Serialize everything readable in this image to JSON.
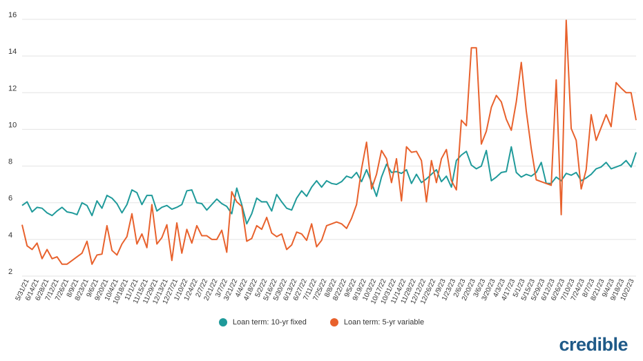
{
  "chart_data": {
    "type": "line",
    "ylim": [
      2,
      16
    ],
    "yticks": [
      2,
      4,
      6,
      8,
      10,
      12,
      14,
      16
    ],
    "grid": true,
    "legend_position": "bottom",
    "x_tick_labels": [
      "5/31/21",
      "6/14/21",
      "6/28/21",
      "7/12/21",
      "7/26/21",
      "8/9/21",
      "8/23/21",
      "9/6/21",
      "9/20/21",
      "10/4/21",
      "10/18/21",
      "11/1/21",
      "11/15/21",
      "11/29/21",
      "12/13/21",
      "12/27/21",
      "1/10/22",
      "1/24/22",
      "2/7/22",
      "2/21/22",
      "3/7/22",
      "3/21/22",
      "4/4/22",
      "4/18/22",
      "5/2/22",
      "5/16/22",
      "5/30/22",
      "6/13/22",
      "6/27/22",
      "7/11/22",
      "7/25/22",
      "8/8/22",
      "8/22/22",
      "9/5/22",
      "9/19/22",
      "10/3/22",
      "10/17/22",
      "10/31/22",
      "11/14/22",
      "11/28/22",
      "12/12/22",
      "12/26/22",
      "1/9/23",
      "1/23/23",
      "2/6/23",
      "2/20/23",
      "3/6/23",
      "3/20/23",
      "4/3/23",
      "4/17/23",
      "5/1/23",
      "5/15/23",
      "5/29/23",
      "6/12/23",
      "6/26/23",
      "7/10/23",
      "7/24/23",
      "8/7/23",
      "8/21/23",
      "9/4/23",
      "9/18/23",
      "10/2/23"
    ],
    "series": [
      {
        "name": "Loan term: 10-yr fixed",
        "color": "#1f9a9a",
        "values": [
          5.85,
          6.05,
          5.5,
          5.75,
          5.7,
          5.45,
          5.3,
          5.55,
          5.75,
          5.5,
          5.45,
          5.35,
          6,
          5.85,
          5.3,
          6.1,
          5.7,
          6.4,
          6.25,
          5.95,
          5.45,
          5.9,
          6.7,
          6.55,
          5.9,
          6.4,
          6.4,
          5.55,
          5.75,
          5.85,
          5.65,
          5.75,
          5.9,
          6.65,
          6.7,
          6,
          5.95,
          5.6,
          5.9,
          6.2,
          5.95,
          5.8,
          5.4,
          6.8,
          5.9,
          4.85,
          5.4,
          6.25,
          6.05,
          6.05,
          5.55,
          6.45,
          6.05,
          5.7,
          5.6,
          6.25,
          6.65,
          6.35,
          6.85,
          7.2,
          6.85,
          7.2,
          7.05,
          7,
          7.15,
          7.45,
          7.35,
          7.65,
          7.15,
          7.8,
          7.1,
          6.35,
          7.4,
          8.1,
          7.65,
          7.7,
          7.6,
          7.8,
          7.05,
          7.55,
          7.1,
          7.3,
          7.55,
          7.8,
          7.15,
          7.45,
          6.85,
          8.3,
          8.6,
          8.8,
          8.05,
          7.85,
          8,
          8.85,
          7.2,
          7.4,
          7.65,
          7.7,
          9.05,
          7.65,
          7.4,
          7.55,
          7.45,
          7.65,
          8.2,
          7.05,
          7.05,
          7.4,
          7.2,
          7.6,
          7.5,
          7.65,
          7.2,
          7.35,
          7.55,
          7.85,
          7.95,
          8.2,
          7.85,
          7.95,
          8.05,
          8.3,
          7.95,
          8.75
        ]
      },
      {
        "name": "Loan term: 5-yr variable",
        "color": "#e8612c",
        "values": [
          4.8,
          3.65,
          3.45,
          3.8,
          2.95,
          3.45,
          2.95,
          3.05,
          2.65,
          2.65,
          2.85,
          3.05,
          3.25,
          3.9,
          2.65,
          3.15,
          3.2,
          4.75,
          3.4,
          3.15,
          3.75,
          4.15,
          5.4,
          3.75,
          4.3,
          3.55,
          5.9,
          3.75,
          4.1,
          4.8,
          2.85,
          4.9,
          3.25,
          4.55,
          3.8,
          4.75,
          4.2,
          4.2,
          4,
          4,
          4.5,
          3.3,
          6.6,
          6.05,
          5.8,
          3.9,
          4.05,
          4.75,
          4.55,
          5.2,
          4.35,
          4.15,
          4.3,
          3.45,
          3.7,
          4.4,
          4.3,
          3.95,
          4.85,
          3.6,
          3.95,
          4.75,
          4.85,
          4.95,
          4.85,
          4.6,
          5.15,
          5.9,
          7.85,
          9.3,
          6.75,
          7.55,
          8.85,
          8.4,
          7.1,
          8.4,
          6.1,
          9.05,
          8.75,
          8.8,
          8.3,
          6.05,
          8.3,
          7.1,
          8.4,
          8.9,
          7.2,
          6.7,
          10.5,
          10.2,
          14.45,
          14.45,
          9.2,
          9.9,
          11.2,
          11.85,
          11.5,
          10.55,
          9.95,
          11.5,
          13.65,
          11,
          8.95,
          7.25,
          7.15,
          7.05,
          6.95,
          12.7,
          5.35,
          15.95,
          10.05,
          9.4,
          6.75,
          7.8,
          10.8,
          9.4,
          10.1,
          10.8,
          10.15,
          12.55,
          12.25,
          12,
          12,
          10.5
        ]
      }
    ]
  },
  "legend": {
    "items": [
      {
        "label": "Loan term: 10-yr fixed",
        "color": "#1f9a9a"
      },
      {
        "label": "Loan term: 5-yr variable",
        "color": "#e8612c"
      }
    ]
  },
  "brand": {
    "text": "credible"
  }
}
